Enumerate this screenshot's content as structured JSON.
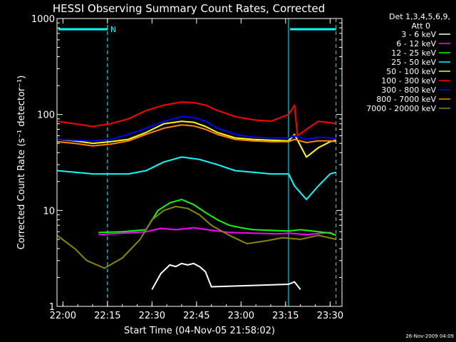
{
  "chart_data": {
    "type": "line",
    "title": "HESSI Observing Summary Count Rates, Corrected",
    "xlabel": "Start Time (04-Nov-05 21:58:02)",
    "ylabel": "Corrected Count Rate (s⁻¹ detector⁻¹)",
    "footer": "26-Nov-2009 04:09",
    "legend_header": [
      "Det 1,3,4,5,6,9,",
      "Att 0"
    ],
    "legend_placement": "right",
    "y_scale": "log",
    "ylim": [
      1,
      1000
    ],
    "xlim": [
      "21:58",
      "23:34"
    ],
    "x_ticks": [
      "22:00",
      "22:15",
      "22:30",
      "22:45",
      "23:00",
      "23:15",
      "23:30"
    ],
    "y_ticks": [
      "1",
      "10",
      "100",
      "1000"
    ],
    "colors": {
      "background": "#000000",
      "axes": "#ffffff",
      "marker": "#00ffff"
    },
    "markers": {
      "label": "N",
      "solid_times": [
        "21:58",
        "23:16"
      ],
      "dashed_times": [
        "22:15",
        "23:32"
      ],
      "bars": [
        [
          "21:58",
          "22:15"
        ],
        [
          "23:16",
          "23:32"
        ]
      ]
    },
    "series": [
      {
        "name": "3 - 6 keV",
        "color": "#ffffff",
        "x": [
          "22:30",
          "22:33",
          "22:36",
          "22:38",
          "22:40",
          "22:42",
          "22:44",
          "22:46",
          "22:48",
          "22:50",
          "23:16",
          "23:18",
          "23:20"
        ],
        "y": [
          1.5,
          2.2,
          2.7,
          2.6,
          2.8,
          2.7,
          2.8,
          2.6,
          2.3,
          1.6,
          1.7,
          1.8,
          1.5
        ]
      },
      {
        "name": "6 - 12 keV",
        "color": "#ff00ff",
        "x": [
          "22:12",
          "22:20",
          "22:28",
          "22:33",
          "22:38",
          "22:44",
          "22:50",
          "22:56",
          "23:04",
          "23:12",
          "23:16",
          "23:22",
          "23:30",
          "23:32"
        ],
        "y": [
          5.6,
          5.8,
          6.0,
          6.5,
          6.3,
          6.6,
          6.2,
          5.9,
          5.8,
          5.7,
          5.8,
          5.6,
          5.9,
          5.5
        ]
      },
      {
        "name": "12 - 25 keV",
        "color": "#00ff00",
        "x": [
          "22:12",
          "22:20",
          "22:28",
          "22:32",
          "22:36",
          "22:40",
          "22:44",
          "22:48",
          "22:52",
          "22:56",
          "23:00",
          "23:04",
          "23:10",
          "23:16",
          "23:20",
          "23:26",
          "23:30",
          "23:32"
        ],
        "y": [
          5.9,
          6.0,
          6.3,
          10.0,
          12.0,
          13.0,
          11.5,
          9.5,
          8.0,
          7.0,
          6.6,
          6.3,
          6.2,
          6.1,
          6.3,
          6.0,
          5.8,
          5.5
        ]
      },
      {
        "name": "25 - 50 keV",
        "color": "#00ffff",
        "x": [
          "21:58",
          "22:04",
          "22:10",
          "22:16",
          "22:22",
          "22:28",
          "22:34",
          "22:40",
          "22:46",
          "22:52",
          "22:58",
          "23:04",
          "23:10",
          "23:16",
          "23:18",
          "23:22",
          "23:26",
          "23:30",
          "23:32"
        ],
        "y": [
          26,
          25,
          24,
          24,
          24,
          26,
          32,
          36,
          34,
          30,
          26,
          25,
          24,
          24,
          18,
          13,
          18,
          24,
          25
        ]
      },
      {
        "name": "50 - 100 keV",
        "color": "#ffff00",
        "x": [
          "21:58",
          "22:04",
          "22:10",
          "22:16",
          "22:22",
          "22:28",
          "22:34",
          "22:40",
          "22:44",
          "22:48",
          "22:52",
          "22:58",
          "23:04",
          "23:10",
          "23:16",
          "23:18",
          "23:22",
          "23:26",
          "23:30",
          "23:32"
        ],
        "y": [
          55,
          53,
          50,
          52,
          55,
          65,
          80,
          85,
          83,
          75,
          65,
          57,
          55,
          54,
          53,
          62,
          36,
          45,
          52,
          54
        ]
      },
      {
        "name": "100 - 300 keV",
        "color": "#ff0000",
        "x": [
          "21:58",
          "22:04",
          "22:10",
          "22:16",
          "22:22",
          "22:28",
          "22:34",
          "22:40",
          "22:44",
          "22:48",
          "22:52",
          "22:58",
          "23:04",
          "23:10",
          "23:16",
          "23:18",
          "23:19",
          "23:22",
          "23:26",
          "23:30",
          "23:32"
        ],
        "y": [
          85,
          80,
          75,
          80,
          90,
          110,
          125,
          135,
          133,
          125,
          110,
          95,
          88,
          85,
          100,
          125,
          60,
          70,
          85,
          82,
          80
        ]
      },
      {
        "name": "300 - 800 keV",
        "color": "#0000ff",
        "x": [
          "21:58",
          "22:04",
          "22:10",
          "22:16",
          "22:22",
          "22:28",
          "22:34",
          "22:40",
          "22:44",
          "22:48",
          "22:52",
          "22:58",
          "23:04",
          "23:10",
          "23:16",
          "23:18",
          "23:22",
          "23:26",
          "23:30",
          "23:32"
        ],
        "y": [
          55,
          54,
          53,
          55,
          62,
          72,
          85,
          95,
          93,
          85,
          72,
          62,
          58,
          57,
          57,
          60,
          55,
          58,
          57,
          56
        ]
      },
      {
        "name": "800 - 7000 keV",
        "color": "#ff8800",
        "x": [
          "21:58",
          "22:04",
          "22:10",
          "22:16",
          "22:22",
          "22:28",
          "22:34",
          "22:40",
          "22:44",
          "22:48",
          "22:52",
          "22:58",
          "23:04",
          "23:10",
          "23:16",
          "23:18",
          "23:22",
          "23:26",
          "23:30",
          "23:32"
        ],
        "y": [
          52,
          50,
          47,
          49,
          53,
          62,
          72,
          78,
          76,
          70,
          62,
          55,
          53,
          52,
          52,
          55,
          51,
          53,
          53,
          52
        ]
      },
      {
        "name": "7000 - 20000 keV",
        "color": "#888800",
        "x": [
          "21:58",
          "22:04",
          "22:08",
          "22:14",
          "22:20",
          "22:26",
          "22:30",
          "22:34",
          "22:38",
          "22:42",
          "22:46",
          "22:50",
          "22:56",
          "23:02",
          "23:08",
          "23:14",
          "23:20",
          "23:26",
          "23:32"
        ],
        "y": [
          5.5,
          4.0,
          3.0,
          2.5,
          3.2,
          5.0,
          8.0,
          10.0,
          11.0,
          10.5,
          9.0,
          7.0,
          5.5,
          4.5,
          4.8,
          5.2,
          5.0,
          5.5,
          5.0
        ]
      }
    ]
  }
}
